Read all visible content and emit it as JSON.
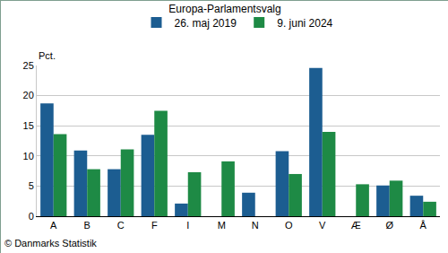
{
  "chart_data": {
    "type": "bar",
    "title": "Europa-Parlamentsvalg",
    "y_label": "Pct.",
    "annotations": [
      "© Danmarks Statistik"
    ],
    "categories": [
      "A",
      "B",
      "C",
      "F",
      "I",
      "M",
      "N",
      "O",
      "V",
      "Æ",
      "Ø",
      "Å"
    ],
    "series": [
      {
        "name": "26. maj 2019",
        "color": "#1c5d91",
        "values": [
          18.7,
          10.9,
          7.8,
          13.5,
          2.1,
          null,
          3.9,
          10.8,
          24.6,
          null,
          5.1,
          3.4
        ]
      },
      {
        "name": "9. juni 2024",
        "color": "#1e8a45",
        "values": [
          13.6,
          7.8,
          11.1,
          17.5,
          7.3,
          9.1,
          null,
          7.0,
          14.0,
          5.3,
          5.9,
          2.4
        ]
      }
    ],
    "ylim": [
      0,
      25
    ],
    "yticks": [
      0,
      5,
      10,
      15,
      20,
      25
    ],
    "grid": true,
    "legend": "top"
  }
}
